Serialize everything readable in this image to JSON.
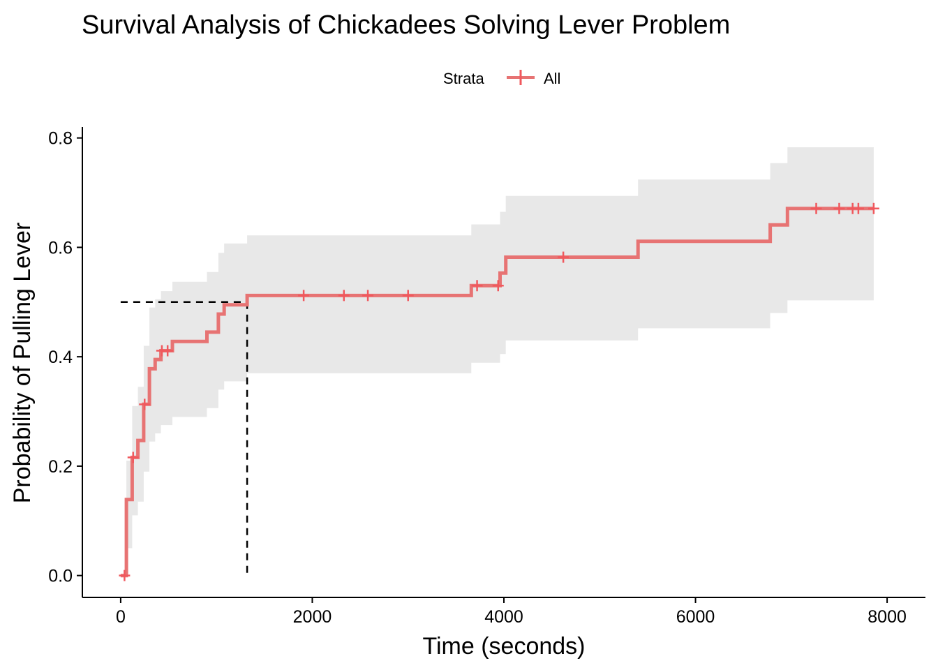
{
  "chart_data": {
    "type": "line",
    "subtype": "kaplan-meier-step",
    "title": "Survival Analysis of Chickadees Solving Lever Problem",
    "xlabel": "Time (seconds)",
    "ylabel": "Probability of Pulling Lever",
    "xlim": [
      -400,
      8400
    ],
    "ylim": [
      -0.04,
      0.82
    ],
    "x_ticks": [
      0,
      2000,
      4000,
      6000,
      8000
    ],
    "x_tick_labels": [
      "0",
      "2000",
      "4000",
      "6000",
      "8000"
    ],
    "y_ticks": [
      0.0,
      0.2,
      0.4,
      0.6,
      0.8
    ],
    "y_tick_labels": [
      "0.0",
      "0.2",
      "0.4",
      "0.6",
      "0.8"
    ],
    "grid": false,
    "legend": {
      "position": "top",
      "title": "Strata",
      "entries": [
        "All"
      ]
    },
    "colors": {
      "line": "#e77373",
      "censor_mark": "#f0585d",
      "confidence_band": "#e8e8e8",
      "median_line": "#000000"
    },
    "series": [
      {
        "name": "All",
        "steps": [
          {
            "x": 0,
            "y": 0.0
          },
          {
            "x": 60,
            "y": 0.139
          },
          {
            "x": 120,
            "y": 0.216
          },
          {
            "x": 180,
            "y": 0.247
          },
          {
            "x": 240,
            "y": 0.313
          },
          {
            "x": 300,
            "y": 0.378
          },
          {
            "x": 360,
            "y": 0.395
          },
          {
            "x": 420,
            "y": 0.411
          },
          {
            "x": 540,
            "y": 0.428
          },
          {
            "x": 900,
            "y": 0.445
          },
          {
            "x": 1020,
            "y": 0.478
          },
          {
            "x": 1080,
            "y": 0.495
          },
          {
            "x": 1320,
            "y": 0.512
          },
          {
            "x": 3660,
            "y": 0.53
          },
          {
            "x": 3960,
            "y": 0.553
          },
          {
            "x": 4020,
            "y": 0.582
          },
          {
            "x": 5400,
            "y": 0.611
          },
          {
            "x": 6780,
            "y": 0.641
          },
          {
            "x": 6960,
            "y": 0.671
          },
          {
            "x": 7860,
            "y": 0.671
          }
        ],
        "censor_times": [
          40,
          130,
          250,
          430,
          490,
          1910,
          2330,
          2580,
          3000,
          3720,
          3940,
          4620,
          7260,
          7500,
          7640,
          7700,
          7860
        ],
        "confidence_band": [
          {
            "x": 0,
            "lower": 0.0,
            "upper": 0.0
          },
          {
            "x": 60,
            "lower": 0.05,
            "upper": 0.21
          },
          {
            "x": 120,
            "lower": 0.11,
            "upper": 0.31
          },
          {
            "x": 180,
            "lower": 0.135,
            "upper": 0.345
          },
          {
            "x": 240,
            "lower": 0.19,
            "upper": 0.42
          },
          {
            "x": 300,
            "lower": 0.245,
            "upper": 0.49
          },
          {
            "x": 360,
            "lower": 0.26,
            "upper": 0.505
          },
          {
            "x": 420,
            "lower": 0.275,
            "upper": 0.52
          },
          {
            "x": 540,
            "lower": 0.29,
            "upper": 0.537
          },
          {
            "x": 900,
            "lower": 0.306,
            "upper": 0.555
          },
          {
            "x": 1020,
            "lower": 0.34,
            "upper": 0.59
          },
          {
            "x": 1080,
            "lower": 0.355,
            "upper": 0.607
          },
          {
            "x": 1320,
            "lower": 0.37,
            "upper": 0.622
          },
          {
            "x": 3660,
            "lower": 0.389,
            "upper": 0.642
          },
          {
            "x": 3960,
            "lower": 0.405,
            "upper": 0.665
          },
          {
            "x": 4020,
            "lower": 0.43,
            "upper": 0.694
          },
          {
            "x": 5400,
            "lower": 0.452,
            "upper": 0.724
          },
          {
            "x": 6780,
            "lower": 0.48,
            "upper": 0.754
          },
          {
            "x": 6960,
            "lower": 0.503,
            "upper": 0.783
          },
          {
            "x": 7860,
            "lower": 0.503,
            "upper": 0.783
          }
        ]
      }
    ],
    "median_reference": {
      "x": 1320,
      "y": 0.5
    }
  }
}
